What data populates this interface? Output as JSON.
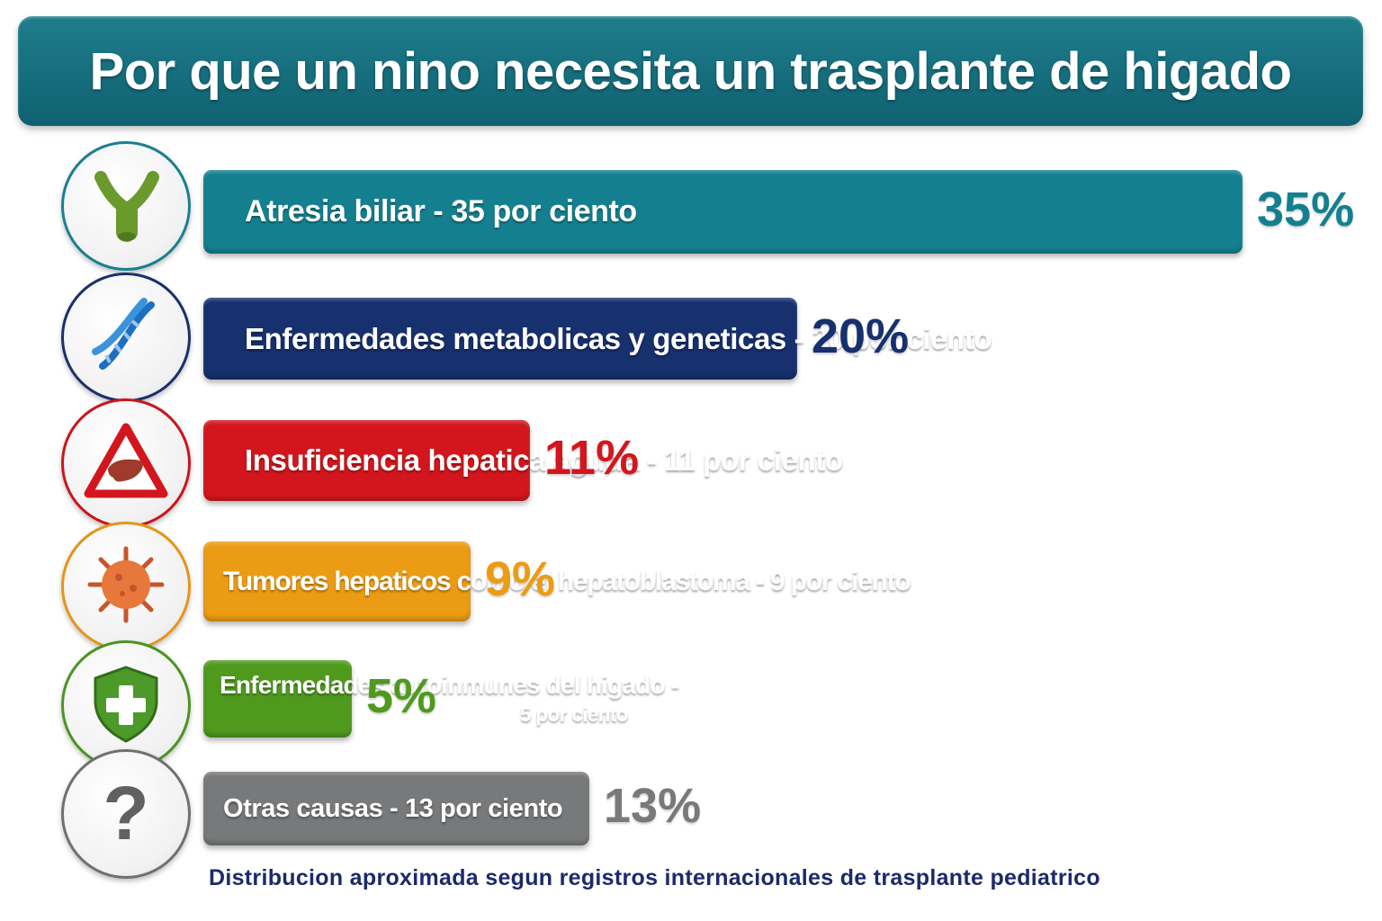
{
  "title": "Por que un nino necesita un trasplante de higado",
  "footnote": "Distribucion aproximada segun registros internacionales de trasplante pediatrico",
  "chart_data": {
    "type": "bar",
    "orientation": "horizontal",
    "title": "Por que un nino necesita un trasplante de higado",
    "categories": [
      "Atresia biliar",
      "Enfermedades metabolicas y geneticas",
      "Insuficiencia hepatica aguda",
      "Tumores hepaticos como el hepatoblastoma",
      "Enfermedades autoinmunes del higado",
      "Otras causas"
    ],
    "values": [
      35,
      20,
      11,
      9,
      5,
      13
    ],
    "bar_labels": [
      "Atresia biliar - 35 por ciento",
      "Enfermedades metabolicas y geneticas - 20 por ciento",
      "Insuficiencia hepatica aguda - 11 por ciento",
      "Tumores hepaticos como el hepatoblastoma - 9 por ciento",
      "Enfermedades autoinmunes del higado -",
      "Otras causas - 13 por ciento"
    ],
    "bar_labels_line2": [
      "",
      "",
      "",
      "",
      "5 por ciento",
      ""
    ],
    "value_labels": [
      "35%",
      "20%",
      "11%",
      "9%",
      "5%",
      "13%"
    ],
    "colors": [
      "#14808f",
      "#17306e",
      "#d3161d",
      "#ec9c14",
      "#4f9a1d",
      "#77797a"
    ],
    "icons": [
      "bile-duct-icon",
      "dna-icon",
      "liver-warning-icon",
      "tumor-cell-icon",
      "shield-cross-icon",
      "question-mark-icon"
    ],
    "xlim": [
      0,
      35
    ],
    "xlabel": "",
    "ylabel": "",
    "grid": false
  }
}
